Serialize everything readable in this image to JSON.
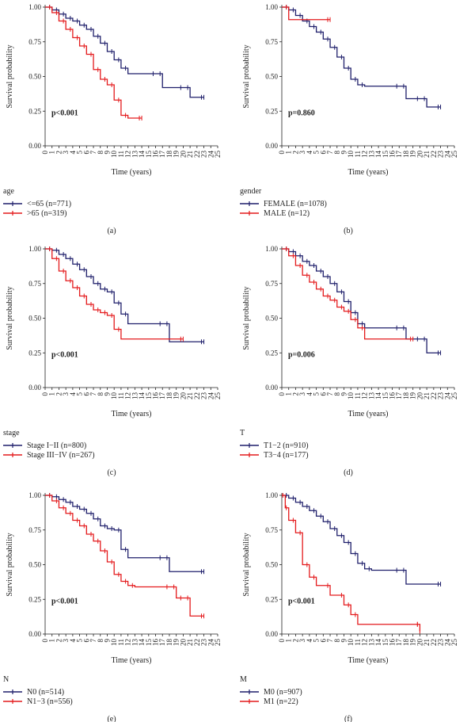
{
  "colors": {
    "group1": "#1f1f6b",
    "group2": "#e41a1c",
    "axis": "#222222"
  },
  "chart_data": [
    {
      "type": "line",
      "caption": "(a)",
      "ylabel": "Survival probability",
      "xlabel": "Time (years)",
      "xlim": [
        0,
        25
      ],
      "ylim": [
        0,
        1
      ],
      "x_ticks": [
        "0",
        "1",
        "2",
        "3",
        "4",
        "5",
        "6",
        "7",
        "8",
        "9",
        "10",
        "11",
        "12",
        "13",
        "14",
        "15",
        "16",
        "17",
        "18",
        "19",
        "20",
        "21",
        "22",
        "23",
        "24",
        "25"
      ],
      "y_ticks": [
        "0.00",
        "0.25",
        "0.50",
        "0.75",
        "1.00"
      ],
      "pvalue": "p<0.001",
      "legend_title": "age",
      "series": [
        {
          "name": "<=65 (n=771)",
          "color": "#1f1f6b",
          "points": [
            [
              0,
              1.0
            ],
            [
              1,
              0.98
            ],
            [
              2,
              0.95
            ],
            [
              3,
              0.92
            ],
            [
              4,
              0.9
            ],
            [
              5,
              0.87
            ],
            [
              6,
              0.84
            ],
            [
              7,
              0.79
            ],
            [
              8,
              0.74
            ],
            [
              9,
              0.68
            ],
            [
              10,
              0.62
            ],
            [
              11,
              0.56
            ],
            [
              12,
              0.52
            ],
            [
              16,
              0.52
            ],
            [
              17,
              0.42
            ],
            [
              20,
              0.42
            ],
            [
              21,
              0.35
            ],
            [
              23,
              0.35
            ]
          ]
        },
        {
          "name": ">65 (n=319)",
          "color": "#e41a1c",
          "points": [
            [
              0,
              1.0
            ],
            [
              1,
              0.96
            ],
            [
              2,
              0.9
            ],
            [
              3,
              0.84
            ],
            [
              4,
              0.78
            ],
            [
              5,
              0.72
            ],
            [
              6,
              0.66
            ],
            [
              7,
              0.55
            ],
            [
              8,
              0.48
            ],
            [
              9,
              0.44
            ],
            [
              10,
              0.33
            ],
            [
              11,
              0.22
            ],
            [
              12,
              0.2
            ],
            [
              14,
              0.2
            ]
          ]
        }
      ]
    },
    {
      "type": "line",
      "caption": "(b)",
      "ylabel": "Survival probability",
      "xlabel": "Time (years)",
      "xlim": [
        0,
        25
      ],
      "ylim": [
        0,
        1
      ],
      "x_ticks": [
        "0",
        "1",
        "2",
        "3",
        "4",
        "5",
        "6",
        "7",
        "8",
        "9",
        "10",
        "11",
        "12",
        "13",
        "14",
        "15",
        "16",
        "17",
        "18",
        "19",
        "20",
        "21",
        "22",
        "23",
        "24",
        "25"
      ],
      "y_ticks": [
        "0.00",
        "0.25",
        "0.50",
        "0.75",
        "1.00"
      ],
      "pvalue": "p=0.860",
      "legend_title": "gender",
      "series": [
        {
          "name": "FEMALE (n=1078)",
          "color": "#1f1f6b",
          "points": [
            [
              0,
              1.0
            ],
            [
              1,
              0.98
            ],
            [
              2,
              0.94
            ],
            [
              3,
              0.9
            ],
            [
              4,
              0.86
            ],
            [
              5,
              0.82
            ],
            [
              6,
              0.77
            ],
            [
              7,
              0.71
            ],
            [
              8,
              0.64
            ],
            [
              9,
              0.56
            ],
            [
              10,
              0.48
            ],
            [
              11,
              0.44
            ],
            [
              12,
              0.43
            ],
            [
              17,
              0.43
            ],
            [
              18,
              0.34
            ],
            [
              20,
              0.34
            ],
            [
              21,
              0.28
            ],
            [
              23,
              0.28
            ]
          ]
        },
        {
          "name": "MALE (n=12)",
          "color": "#e41a1c",
          "points": [
            [
              0,
              1.0
            ],
            [
              1,
              0.91
            ],
            [
              7,
              0.91
            ]
          ]
        }
      ]
    },
    {
      "type": "line",
      "caption": "(c)",
      "ylabel": "Survival probability",
      "xlabel": "Time (years)",
      "xlim": [
        0,
        25
      ],
      "ylim": [
        0,
        1
      ],
      "x_ticks": [
        "0",
        "1",
        "2",
        "3",
        "4",
        "5",
        "6",
        "7",
        "8",
        "9",
        "10",
        "11",
        "12",
        "13",
        "14",
        "15",
        "16",
        "17",
        "18",
        "19",
        "20",
        "21",
        "22",
        "23",
        "24",
        "25"
      ],
      "y_ticks": [
        "0.00",
        "0.25",
        "0.50",
        "0.75",
        "1.00"
      ],
      "pvalue": "p<0.001",
      "legend_title": "stage",
      "series": [
        {
          "name": "Stage I−II (n=800)",
          "color": "#1f1f6b",
          "points": [
            [
              0,
              1.0
            ],
            [
              1,
              0.99
            ],
            [
              2,
              0.96
            ],
            [
              3,
              0.93
            ],
            [
              4,
              0.89
            ],
            [
              5,
              0.85
            ],
            [
              6,
              0.8
            ],
            [
              7,
              0.75
            ],
            [
              8,
              0.71
            ],
            [
              9,
              0.69
            ],
            [
              10,
              0.61
            ],
            [
              11,
              0.53
            ],
            [
              12,
              0.46
            ],
            [
              17,
              0.46
            ],
            [
              18,
              0.33
            ],
            [
              23,
              0.33
            ]
          ]
        },
        {
          "name": "Stage III−IV (n=267)",
          "color": "#e41a1c",
          "points": [
            [
              0,
              1.0
            ],
            [
              1,
              0.93
            ],
            [
              2,
              0.84
            ],
            [
              3,
              0.77
            ],
            [
              4,
              0.72
            ],
            [
              5,
              0.66
            ],
            [
              6,
              0.6
            ],
            [
              7,
              0.56
            ],
            [
              8,
              0.54
            ],
            [
              9,
              0.52
            ],
            [
              10,
              0.42
            ],
            [
              11,
              0.35
            ],
            [
              20,
              0.35
            ]
          ]
        }
      ]
    },
    {
      "type": "line",
      "caption": "(d)",
      "ylabel": "Survival probability",
      "xlabel": "Time (years)",
      "xlim": [
        0,
        25
      ],
      "ylim": [
        0,
        1
      ],
      "x_ticks": [
        "0",
        "1",
        "2",
        "3",
        "4",
        "5",
        "6",
        "7",
        "8",
        "9",
        "10",
        "11",
        "12",
        "13",
        "14",
        "15",
        "16",
        "17",
        "18",
        "19",
        "20",
        "21",
        "22",
        "23",
        "24",
        "25"
      ],
      "y_ticks": [
        "0.00",
        "0.25",
        "0.50",
        "0.75",
        "1.00"
      ],
      "pvalue": "p=0.006",
      "legend_title": "T",
      "series": [
        {
          "name": "T1−2 (n=910)",
          "color": "#1f1f6b",
          "points": [
            [
              0,
              1.0
            ],
            [
              1,
              0.98
            ],
            [
              2,
              0.95
            ],
            [
              3,
              0.91
            ],
            [
              4,
              0.88
            ],
            [
              5,
              0.84
            ],
            [
              6,
              0.8
            ],
            [
              7,
              0.75
            ],
            [
              8,
              0.69
            ],
            [
              9,
              0.62
            ],
            [
              10,
              0.54
            ],
            [
              11,
              0.46
            ],
            [
              12,
              0.43
            ],
            [
              17,
              0.43
            ],
            [
              18,
              0.35
            ],
            [
              20,
              0.35
            ],
            [
              21,
              0.25
            ],
            [
              23,
              0.25
            ]
          ]
        },
        {
          "name": "T3−4 (n=177)",
          "color": "#e41a1c",
          "points": [
            [
              0,
              1.0
            ],
            [
              1,
              0.95
            ],
            [
              2,
              0.88
            ],
            [
              3,
              0.81
            ],
            [
              4,
              0.76
            ],
            [
              5,
              0.71
            ],
            [
              6,
              0.66
            ],
            [
              7,
              0.63
            ],
            [
              8,
              0.58
            ],
            [
              9,
              0.55
            ],
            [
              10,
              0.49
            ],
            [
              11,
              0.43
            ],
            [
              12,
              0.35
            ],
            [
              19,
              0.35
            ]
          ]
        }
      ]
    },
    {
      "type": "line",
      "caption": "(e)",
      "ylabel": "Survival probability",
      "xlabel": "Time (years)",
      "xlim": [
        0,
        25
      ],
      "ylim": [
        0,
        1
      ],
      "x_ticks": [
        "0",
        "1",
        "2",
        "3",
        "4",
        "5",
        "6",
        "7",
        "8",
        "9",
        "10",
        "11",
        "12",
        "13",
        "14",
        "15",
        "16",
        "17",
        "18",
        "19",
        "20",
        "21",
        "22",
        "23",
        "24",
        "25"
      ],
      "y_ticks": [
        "0.00",
        "0.25",
        "0.50",
        "0.75",
        "1.00"
      ],
      "pvalue": "p<0.001",
      "legend_title": "N",
      "series": [
        {
          "name": "N0 (n=514)",
          "color": "#1f1f6b",
          "points": [
            [
              0,
              1.0
            ],
            [
              1,
              0.99
            ],
            [
              2,
              0.97
            ],
            [
              3,
              0.95
            ],
            [
              4,
              0.92
            ],
            [
              5,
              0.9
            ],
            [
              6,
              0.87
            ],
            [
              7,
              0.83
            ],
            [
              8,
              0.78
            ],
            [
              9,
              0.76
            ],
            [
              10,
              0.75
            ],
            [
              11,
              0.61
            ],
            [
              12,
              0.55
            ],
            [
              17,
              0.55
            ],
            [
              18,
              0.45
            ],
            [
              23,
              0.45
            ]
          ]
        },
        {
          "name": "N1−3 (n=556)",
          "color": "#e41a1c",
          "points": [
            [
              0,
              1.0
            ],
            [
              1,
              0.96
            ],
            [
              2,
              0.91
            ],
            [
              3,
              0.87
            ],
            [
              4,
              0.82
            ],
            [
              5,
              0.78
            ],
            [
              6,
              0.72
            ],
            [
              7,
              0.67
            ],
            [
              8,
              0.6
            ],
            [
              9,
              0.52
            ],
            [
              10,
              0.43
            ],
            [
              11,
              0.38
            ],
            [
              12,
              0.35
            ],
            [
              13,
              0.34
            ],
            [
              18,
              0.34
            ],
            [
              19,
              0.26
            ],
            [
              20,
              0.26
            ],
            [
              21,
              0.13
            ],
            [
              23,
              0.13
            ]
          ]
        }
      ]
    },
    {
      "type": "line",
      "caption": "(f)",
      "ylabel": "Survival probability",
      "xlabel": "Time (years)",
      "xlim": [
        0,
        25
      ],
      "ylim": [
        0,
        1
      ],
      "x_ticks": [
        "0",
        "1",
        "2",
        "3",
        "4",
        "5",
        "6",
        "7",
        "8",
        "9",
        "10",
        "11",
        "12",
        "13",
        "14",
        "15",
        "16",
        "17",
        "18",
        "19",
        "20",
        "21",
        "22",
        "23",
        "24",
        "25"
      ],
      "y_ticks": [
        "0.00",
        "0.25",
        "0.50",
        "0.75",
        "1.00"
      ],
      "pvalue": "p<0.001",
      "legend_title": "M",
      "series": [
        {
          "name": "M0 (n=907)",
          "color": "#1f1f6b",
          "points": [
            [
              0,
              1.0
            ],
            [
              1,
              0.98
            ],
            [
              2,
              0.95
            ],
            [
              3,
              0.92
            ],
            [
              4,
              0.89
            ],
            [
              5,
              0.85
            ],
            [
              6,
              0.81
            ],
            [
              7,
              0.76
            ],
            [
              8,
              0.71
            ],
            [
              9,
              0.66
            ],
            [
              10,
              0.58
            ],
            [
              11,
              0.51
            ],
            [
              12,
              0.47
            ],
            [
              13,
              0.46
            ],
            [
              17,
              0.46
            ],
            [
              18,
              0.36
            ],
            [
              23,
              0.36
            ]
          ]
        },
        {
          "name": "M1 (n=22)",
          "color": "#e41a1c",
          "points": [
            [
              0,
              1.0
            ],
            [
              0.5,
              0.91
            ],
            [
              1,
              0.82
            ],
            [
              2,
              0.73
            ],
            [
              3,
              0.5
            ],
            [
              4,
              0.41
            ],
            [
              5,
              0.35
            ],
            [
              7,
              0.28
            ],
            [
              9,
              0.21
            ],
            [
              10,
              0.14
            ],
            [
              11,
              0.07
            ],
            [
              20,
              0.07
            ],
            [
              20,
              0.02
            ]
          ]
        }
      ]
    }
  ]
}
